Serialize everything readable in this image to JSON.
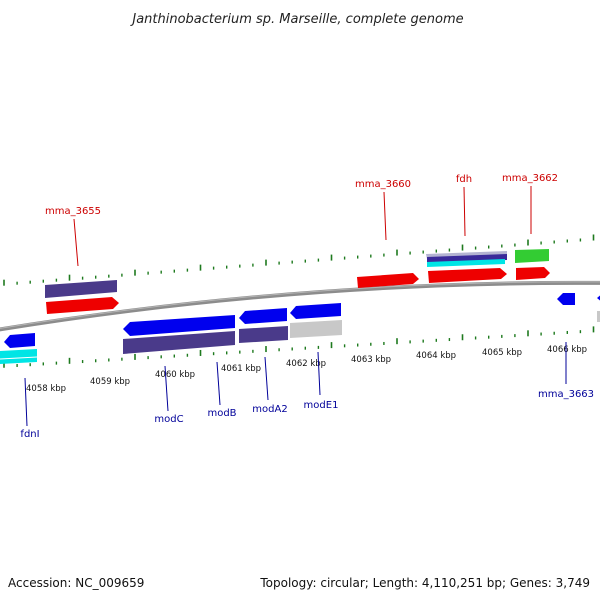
{
  "title": "Janthinobacterium sp. Marseille, complete genome",
  "footer": {
    "accession": "Accession: NC_009659",
    "topology": "Topology: circular; Length: 4,110,251 bp; Genes: 3,749"
  },
  "colors": {
    "backbone": "#8c8c8c",
    "tick": "#1e7a1e",
    "cds_forward": "#ee0000",
    "cds_reverse": "#0000ee",
    "gene_track": "#4a3a8a",
    "trna": "#00e5e5",
    "green_feature": "#33cc33",
    "pseudo": "#c8c8c8",
    "label_top": "#cc0000",
    "label_bottom": "#000099"
  },
  "kbp_labels": [
    "4058 kbp",
    "4059 kbp",
    "4060 kbp",
    "4061 kbp",
    "4062 kbp",
    "4063 kbp",
    "4064 kbp",
    "4065 kbp",
    "4066 kbp"
  ],
  "gene_labels_top": [
    "mma_3655",
    "mma_3660",
    "fdh",
    "mma_3662"
  ],
  "gene_labels_bottom": [
    "fdnI",
    "modC",
    "modB",
    "modA2",
    "modE1",
    "mma_3663"
  ]
}
